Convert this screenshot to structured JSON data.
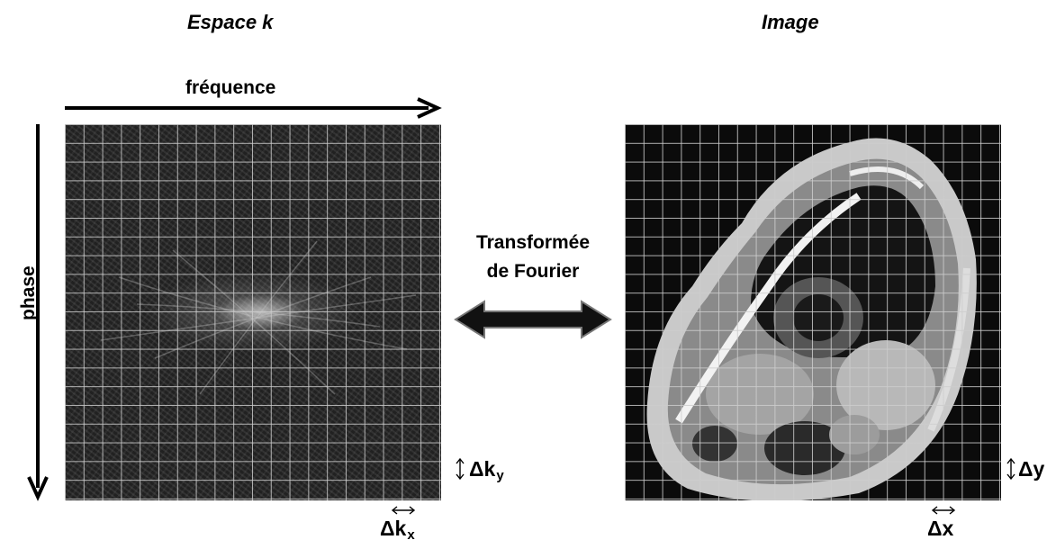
{
  "titles": {
    "left": "Espace k",
    "right": "Image"
  },
  "axes": {
    "frequency": "fréquence",
    "phase": "phase"
  },
  "transform": {
    "line1": "Transformée",
    "line2": "de Fourier"
  },
  "deltas": {
    "dky_base": "Δk",
    "dky_sub": "y",
    "dkx_base": "Δk",
    "dkx_sub": "x",
    "dy": "Δy",
    "dx": "Δx"
  },
  "icons": {
    "frequency_arrow": "right-arrow-icon",
    "phase_arrow": "down-arrow-icon",
    "transform_arrow": "double-arrow-icon",
    "vertical_step": "vertical-double-arrow-icon",
    "horizontal_step": "horizontal-double-arrow-icon"
  },
  "colors": {
    "kspace_bg": "#2b2b2b",
    "image_bg": "#0b0b0b",
    "grid": "#cdcdcd"
  }
}
